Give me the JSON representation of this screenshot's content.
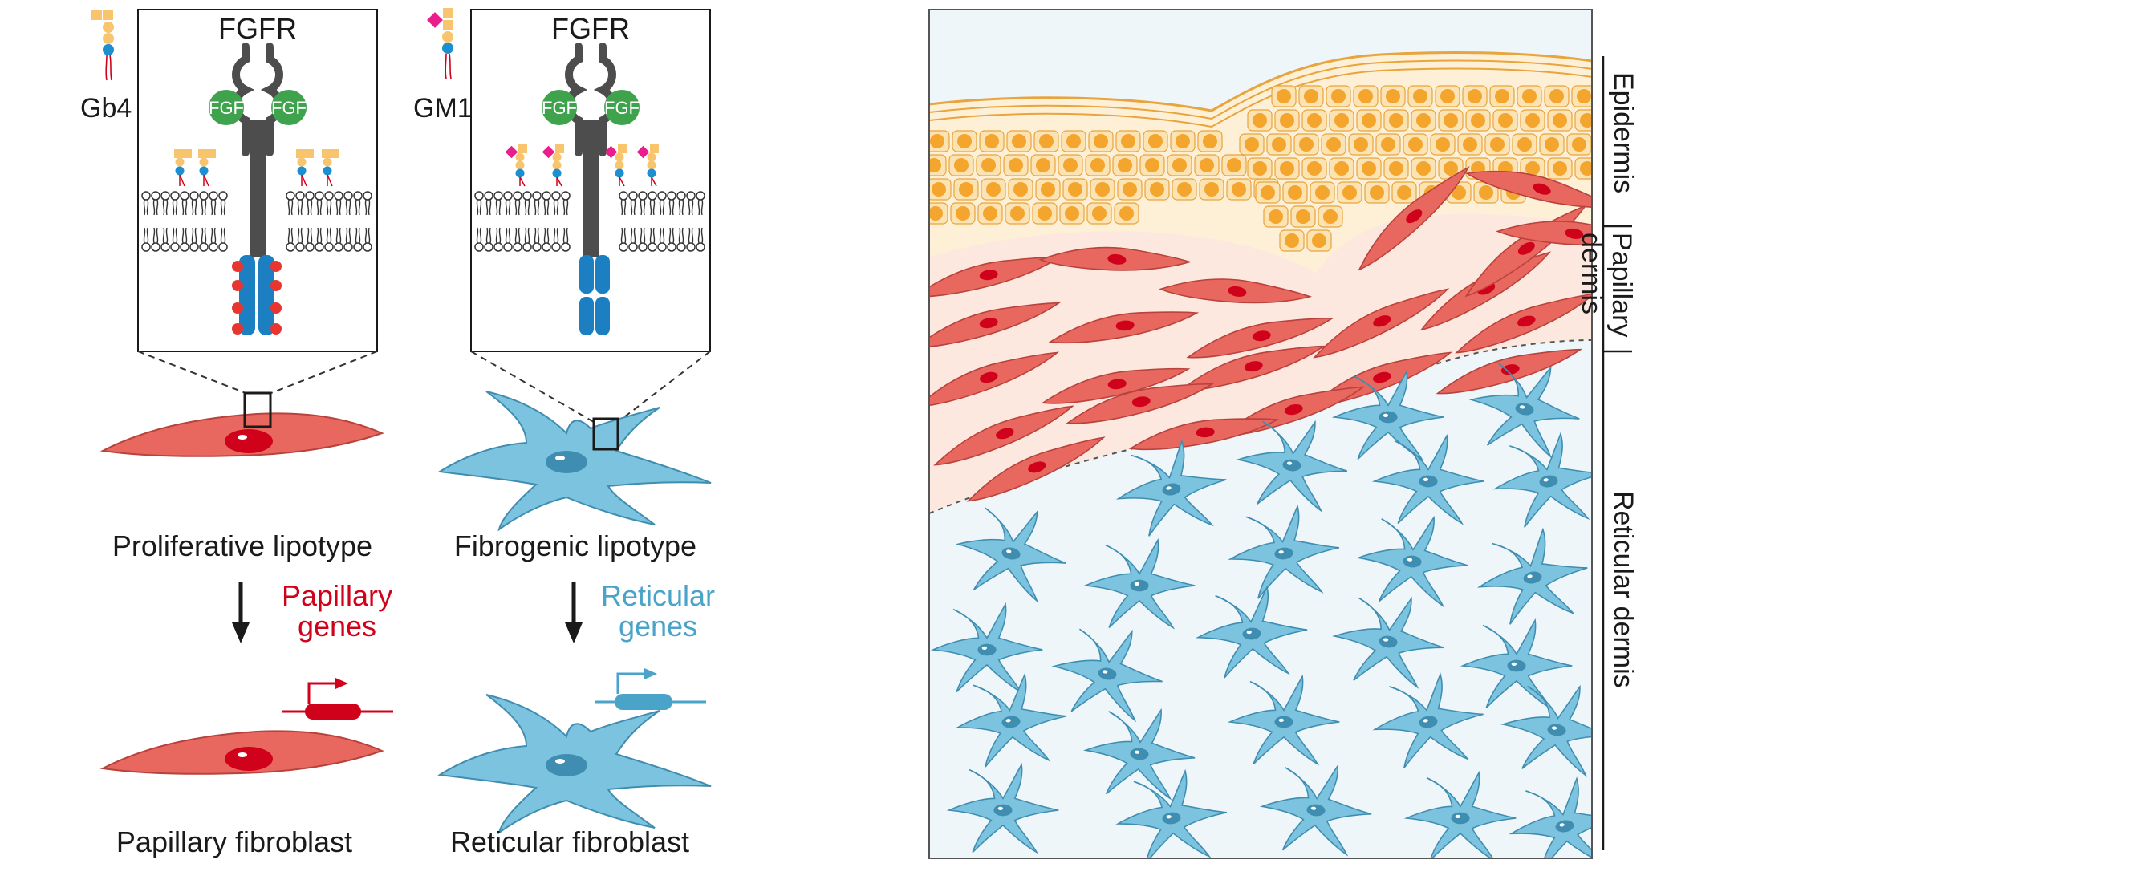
{
  "colors": {
    "papillary_red": "#e8675f",
    "reticular_blue": "#7cc3df",
    "receptor_gray": "#4d4d4d",
    "fgf_green": "#3fa34d",
    "epidermis_orange": "#f8c56e",
    "gene_red": "#d0021b",
    "gene_blue": "#4aa3c8"
  },
  "left_panel": {
    "box1": {
      "title": "FGFR",
      "ligand1": "FGF",
      "ligand2": "FGF",
      "lipid_label": "Gb4"
    },
    "box2": {
      "title": "FGFR",
      "ligand1": "FGF",
      "ligand2": "FGF",
      "lipid_label": "GM1"
    },
    "lipotype1": "Proliferative lipotype",
    "lipotype2": "Fibrogenic lipotype",
    "genes1_line1": "Papillary",
    "genes1_line2": "genes",
    "genes2_line1": "Reticular",
    "genes2_line2": "genes",
    "fibroblast1": "Papillary fibroblast",
    "fibroblast2": "Reticular fibroblast"
  },
  "right_panel": {
    "layer1": "Epidermis",
    "layer2_line1": "Papillary",
    "layer2_line2": "dermis",
    "layer3": "Reticular dermis"
  }
}
